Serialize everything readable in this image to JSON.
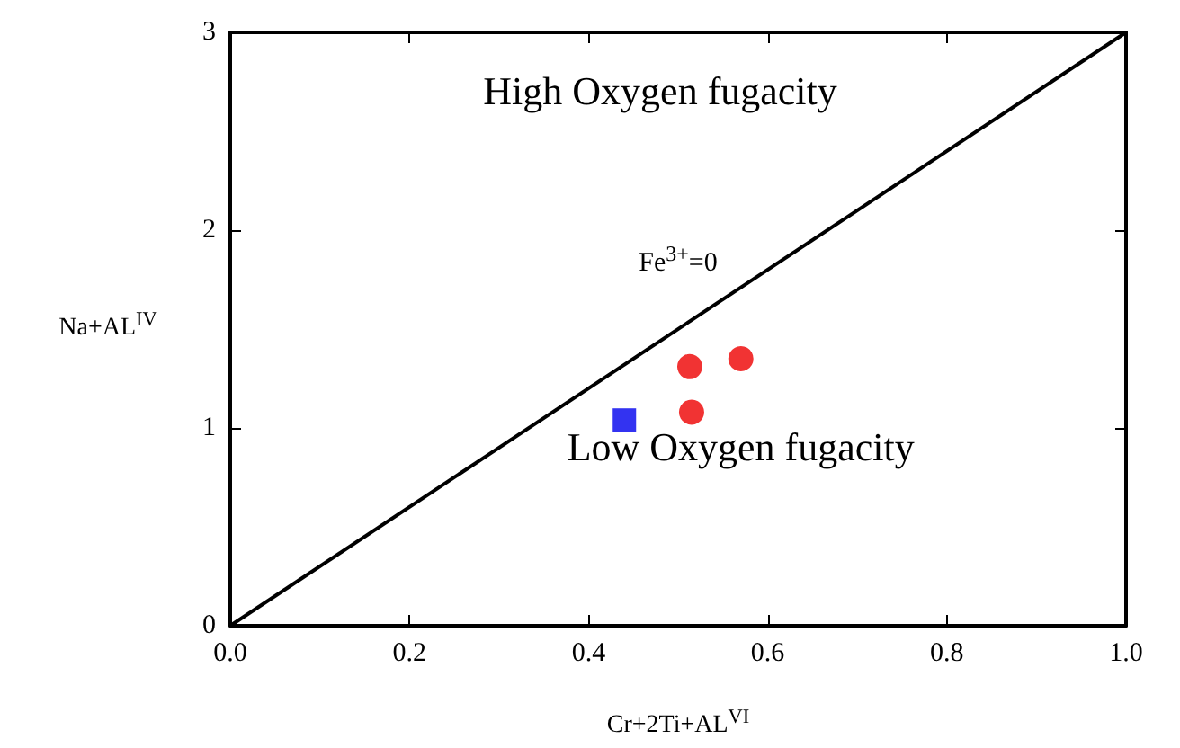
{
  "chart_data": {
    "type": "scatter",
    "xlabel": "Cr+2Ti+AL$^{VI}$",
    "ylabel": "Na+AL$^{IV}$",
    "xlim": [
      0,
      1
    ],
    "xticks": [
      {
        "value": 0,
        "label": "0.0"
      },
      {
        "value": 0.2,
        "label": "0.2"
      },
      {
        "value": 0.4,
        "label": "0.4"
      },
      {
        "value": 0.6,
        "label": "0.6"
      },
      {
        "value": 0.8,
        "label": "0.8"
      },
      {
        "value": 1,
        "label": "1.0"
      }
    ],
    "ylim": [
      0,
      3
    ],
    "yticks": [
      0,
      1,
      2,
      3
    ],
    "grid": false,
    "series": [
      {
        "type": "line",
        "color": "#000000",
        "x": [
          0,
          1
        ],
        "values": [
          0,
          3
        ],
        "marker": "none",
        "line_style": "solid"
      },
      {
        "color": "#ee0000",
        "x": [
          0.513,
          0.57,
          0.515
        ],
        "values": [
          1.31,
          1.35,
          1.08
        ],
        "marker": "circle"
      },
      {
        "color": "#0000ee",
        "x": [
          0.44
        ],
        "values": [
          1.04
        ],
        "marker": "square"
      }
    ],
    "annotations": [
      "High Oxygen fugacity",
      "Low Oxygen fugacity",
      "Fe$^{3+}$=0"
    ]
  }
}
